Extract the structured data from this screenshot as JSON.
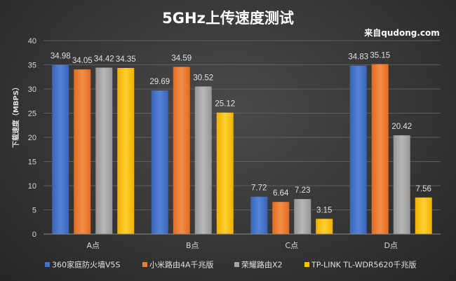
{
  "chart_data": {
    "type": "bar",
    "title": "5GHz上传速度测试",
    "source_note": "来自qudong.com",
    "ylabel": "下载速度（MBPS）",
    "xlabel": "",
    "ylim": [
      0,
      40
    ],
    "yticks": [
      0,
      5,
      10,
      15,
      20,
      25,
      30,
      35,
      40
    ],
    "grid": true,
    "legend_position": "bottom",
    "categories": [
      "A点",
      "B点",
      "C点",
      "D点"
    ],
    "series": [
      {
        "name": "360家庭防火墙V5S",
        "color": "#4472c4",
        "values": [
          34.98,
          29.69,
          7.72,
          34.83
        ],
        "labels": [
          "34.98",
          "29.69",
          "7.72",
          "34.83"
        ]
      },
      {
        "name": "小米路由4A千兆版",
        "color": "#ed7d31",
        "values": [
          34.05,
          34.59,
          6.64,
          35.15
        ],
        "labels": [
          "34.05",
          "34.59",
          "6.64",
          "35.15"
        ]
      },
      {
        "name": "荣耀路由X2",
        "color": "#a5a5a5",
        "values": [
          34.42,
          30.52,
          7.23,
          20.42
        ],
        "labels": [
          "34.42",
          "30.52",
          "7.23",
          "20.42"
        ]
      },
      {
        "name": "TP-LINK TL-WDR5620千兆版",
        "color": "#ffc000",
        "values": [
          34.35,
          25.12,
          3.15,
          7.56
        ],
        "labels": [
          "34.35",
          "25.12",
          "3.15",
          "7.56"
        ]
      }
    ]
  }
}
